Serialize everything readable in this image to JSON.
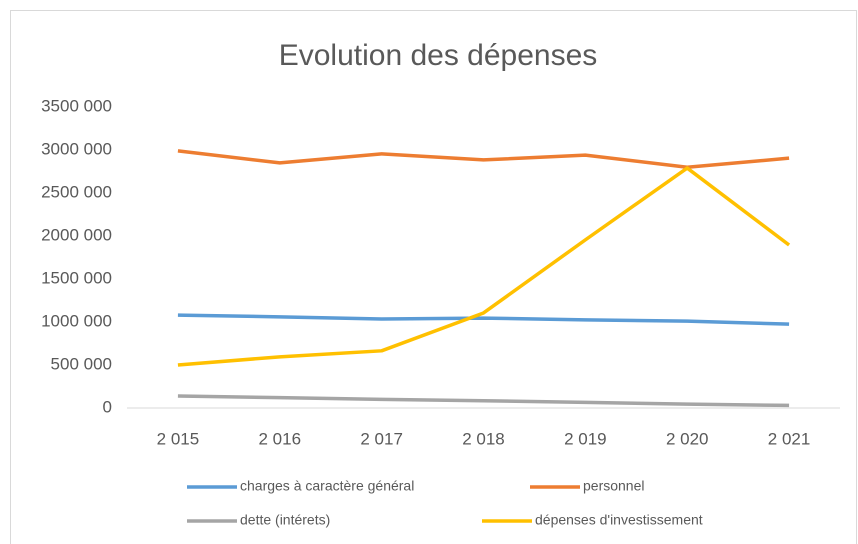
{
  "chart_data": {
    "type": "line",
    "title": "Evolution des dépenses",
    "categories": [
      "2 015",
      "2 016",
      "2 017",
      "2 018",
      "2 019",
      "2 020",
      "2 021"
    ],
    "series": [
      {
        "name": "charges à caractère général",
        "color": "#5b9bd5",
        "values": [
          1080000,
          1060000,
          1035000,
          1045000,
          1025000,
          1010000,
          975000
        ]
      },
      {
        "name": "personnel",
        "color": "#ed7d31",
        "values": [
          2990000,
          2850000,
          2955000,
          2885000,
          2940000,
          2800000,
          2905000
        ]
      },
      {
        "name": "dette (intérets)",
        "color": "#a5a5a5",
        "values": [
          140000,
          120000,
          100000,
          85000,
          65000,
          45000,
          30000
        ]
      },
      {
        "name": "dépenses d'investissement",
        "color": "#ffc000",
        "values": [
          500000,
          595000,
          665000,
          1105000,
          1955000,
          2790000,
          1895000
        ]
      }
    ],
    "ylim": [
      0,
      3500000
    ],
    "yticks": [
      0,
      {
        "value": 500000,
        "label": "500 000"
      },
      {
        "value": 1000000,
        "label": "1000 000"
      },
      {
        "value": 1500000,
        "label": "1500 000"
      },
      {
        "value": 2000000,
        "label": "2000 000"
      },
      {
        "value": 2500000,
        "label": "2500 000"
      },
      {
        "value": 3000000,
        "label": "3000 000"
      },
      {
        "value": 3500000,
        "label": "3500 000"
      }
    ],
    "grid": false
  }
}
